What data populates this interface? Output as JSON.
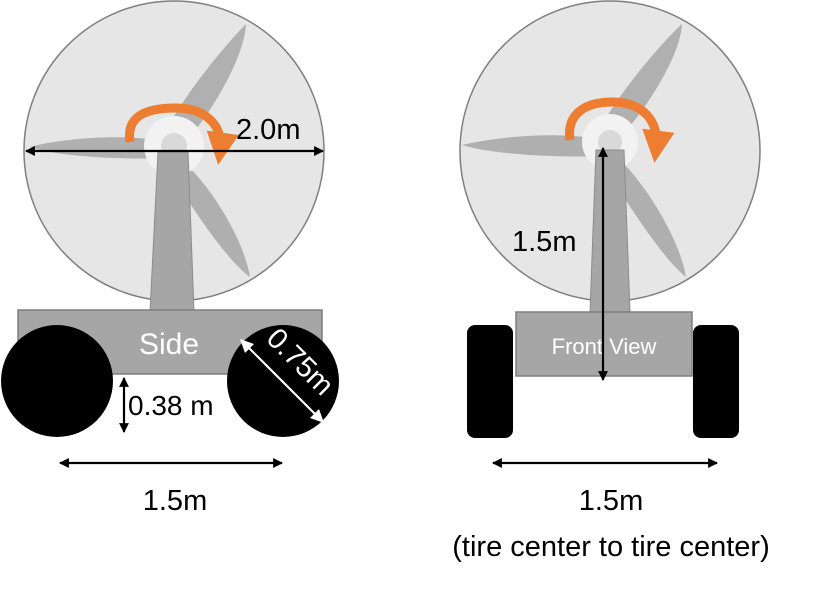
{
  "side_view": {
    "body_label": "Side",
    "rotor_diameter": "2.0m",
    "wheel_diameter": "0.75m",
    "ground_clearance": "0.38 m",
    "wheelbase": "1.5m"
  },
  "front_view": {
    "body_label": "Front View",
    "hub_height": "1.5m",
    "track_width": "1.5m",
    "track_note": "(tire center to tire center)"
  },
  "colors": {
    "rotor_disk": "#e6e6e6",
    "rotor_outline": "#7f7f7f",
    "blade": "#a6a6a6",
    "tower": "#a6a6a6",
    "body": "#a6a6a6",
    "body_outline": "#7f7f7f",
    "wheel": "#000000",
    "rotation_arrow": "#ed7d31",
    "dimension_line": "#000000",
    "label_on_body": "#ffffff"
  }
}
